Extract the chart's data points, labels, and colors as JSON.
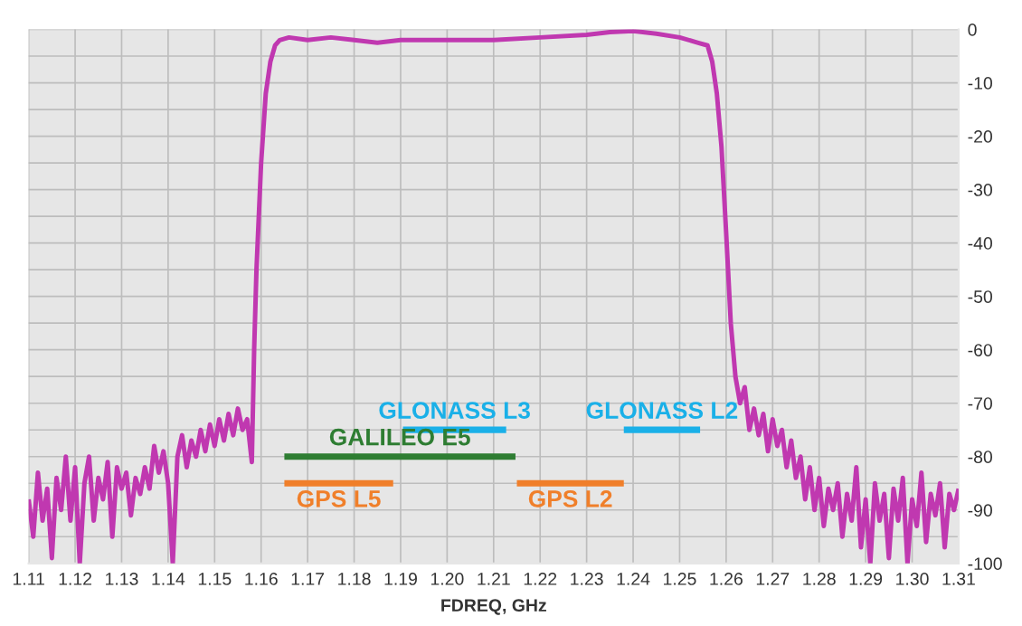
{
  "chart_data": {
    "type": "line",
    "xlabel": "FDREQ, GHz",
    "xlim": [
      1.11,
      1.31
    ],
    "xticks": [
      1.11,
      1.12,
      1.13,
      1.14,
      1.15,
      1.16,
      1.17,
      1.18,
      1.19,
      {
        "value": 1.2,
        "label": "1.20"
      },
      1.21,
      1.22,
      1.23,
      1.24,
      1.25,
      1.26,
      1.27,
      1.28,
      1.29,
      {
        "value": 1.3,
        "label": "1.30"
      },
      1.31
    ],
    "ylim": [
      -100,
      0
    ],
    "yticks": [
      0,
      {
        "value": -5,
        "label": null
      },
      -10,
      {
        "value": -15,
        "label": null
      },
      -20,
      {
        "value": -25,
        "label": null
      },
      -30,
      {
        "value": -35,
        "label": null
      },
      -40,
      {
        "value": -45,
        "label": null
      },
      -50,
      {
        "value": -55,
        "label": null
      },
      -60,
      {
        "value": -65,
        "label": null
      },
      -70,
      {
        "value": -75,
        "label": null
      },
      -80,
      {
        "value": -85,
        "label": null
      },
      -90,
      {
        "value": -95,
        "label": null
      },
      -100
    ],
    "grid": true,
    "legend": false,
    "marker": "none",
    "line_style": "solid",
    "series": [
      {
        "color": "#c038b0",
        "x": [
          1.11,
          1.111,
          1.112,
          1.113,
          1.114,
          1.115,
          1.116,
          1.117,
          1.118,
          1.119,
          1.12,
          1.121,
          1.122,
          1.123,
          1.124,
          1.125,
          1.126,
          1.127,
          1.128,
          1.129,
          1.13,
          1.131,
          1.132,
          1.133,
          1.134,
          1.135,
          1.136,
          1.137,
          1.138,
          1.139,
          1.14,
          1.141,
          1.142,
          1.143,
          1.144,
          1.145,
          1.146,
          1.147,
          1.148,
          1.149,
          1.15,
          1.151,
          1.152,
          1.153,
          1.154,
          1.155,
          1.156,
          1.157,
          1.158,
          1.1585,
          1.159,
          1.16,
          1.161,
          1.162,
          1.163,
          1.164,
          1.166,
          1.17,
          1.175,
          1.18,
          1.185,
          1.19,
          1.2,
          1.21,
          1.22,
          1.23,
          1.235,
          1.24,
          1.245,
          1.25,
          1.254,
          1.256,
          1.257,
          1.258,
          1.259,
          1.26,
          1.261,
          1.262,
          1.263,
          1.264,
          1.265,
          1.266,
          1.267,
          1.268,
          1.269,
          1.27,
          1.271,
          1.272,
          1.273,
          1.274,
          1.275,
          1.276,
          1.277,
          1.278,
          1.279,
          1.28,
          1.281,
          1.282,
          1.283,
          1.284,
          1.285,
          1.286,
          1.287,
          1.288,
          1.289,
          1.29,
          1.291,
          1.292,
          1.293,
          1.294,
          1.295,
          1.296,
          1.297,
          1.298,
          1.299,
          1.3,
          1.301,
          1.302,
          1.303,
          1.304,
          1.305,
          1.306,
          1.307,
          1.308,
          1.309,
          1.31
        ],
        "values": [
          -88,
          -95,
          -83,
          -92,
          -86,
          -99,
          -84,
          -90,
          -80,
          -92,
          -82,
          -100,
          -85,
          -80,
          -92,
          -84,
          -88,
          -81,
          -95,
          -82,
          -86,
          -83,
          -91,
          -84,
          -87,
          -82,
          -86,
          -78,
          -83,
          -79,
          -85,
          -100,
          -80,
          -76,
          -82,
          -77,
          -80,
          -75,
          -79,
          -74,
          -78,
          -73,
          -77,
          -72,
          -76,
          -71,
          -75,
          -73,
          -81,
          -60,
          -45,
          -25,
          -12,
          -6,
          -3,
          -2,
          -1.5,
          -2,
          -1.5,
          -2,
          -2.5,
          -2,
          -2,
          -2,
          -1.5,
          -1,
          -0.5,
          -0.3,
          -0.8,
          -1.5,
          -2.5,
          -3,
          -6,
          -12,
          -22,
          -38,
          -55,
          -65,
          -70,
          -67,
          -75,
          -71,
          -76,
          -72,
          -79,
          -73,
          -78,
          -75,
          -82,
          -77,
          -84,
          -80,
          -88,
          -82,
          -90,
          -84,
          -93,
          -86,
          -90,
          -85,
          -95,
          -87,
          -92,
          -82,
          -97,
          -88,
          -100,
          -85,
          -92,
          -87,
          -99,
          -86,
          -92,
          -84,
          -100,
          -88,
          -93,
          -83,
          -96,
          -87,
          -91,
          -85,
          -97,
          -87,
          -90,
          -86
        ]
      },
      {
        "name": "GLONASS L3",
        "color": "#1ab0e8",
        "x": [
          1.1905,
          1.2127
        ],
        "values": [
          -75,
          -75
        ]
      },
      {
        "name": "GLONASS L2",
        "color": "#1ab0e8",
        "x": [
          1.238,
          1.2544
        ],
        "values": [
          -75,
          -75
        ]
      },
      {
        "name": "GALILEO E5",
        "color": "#2e7d32",
        "x": [
          1.165,
          1.2147
        ],
        "values": [
          -80,
          -80
        ]
      },
      {
        "name": "GPS L5",
        "color": "#f07f2a",
        "x": [
          1.165,
          1.1884
        ],
        "values": [
          -85,
          -85
        ]
      },
      {
        "name": "GPS L2",
        "color": "#f07f2a",
        "x": [
          1.215,
          1.238
        ],
        "values": [
          -85,
          -85
        ]
      }
    ]
  }
}
